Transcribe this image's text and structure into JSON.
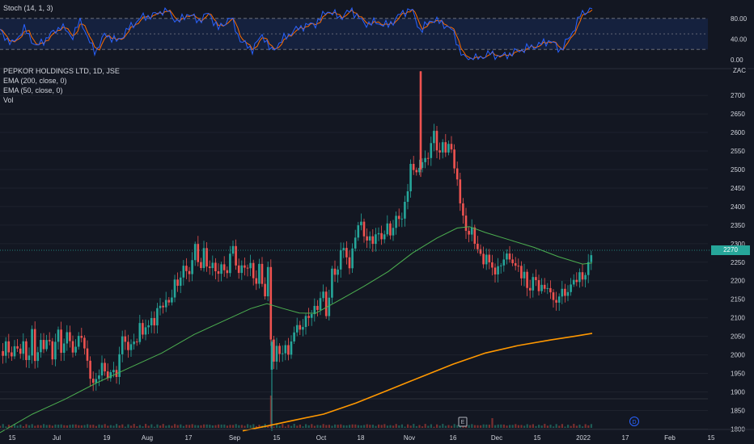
{
  "chart_data": {
    "type": "candlestick",
    "symbol_title": "PEPKOR HOLDINGS LTD, 1D, JSE",
    "currency": "ZAC",
    "last_price_label": "2270",
    "indicators": {
      "ema200_label": "EMA (200, close, 0)",
      "ema50_label": "EMA (50, close, 0)",
      "volume_label": "Vol",
      "stoch_label": "Stoch (14, 1, 3)"
    },
    "colors": {
      "background": "#131722",
      "up": "#26a69a",
      "down": "#ef5350",
      "ema200": "#ff9800",
      "ema50": "#4caf50",
      "stoch_k": "#2962ff",
      "stoch_d": "#ff6d00"
    },
    "price_axis": {
      "ylim": [
        1790,
        2770
      ],
      "ticks": [
        1800,
        1850,
        1900,
        1950,
        2000,
        2050,
        2100,
        2150,
        2200,
        2250,
        2300,
        2350,
        2400,
        2450,
        2500,
        2550,
        2600,
        2650,
        2700
      ]
    },
    "stoch_axis": {
      "ylim": [
        0,
        100
      ],
      "ticks": [
        "0.00",
        "40.00",
        "80.00"
      ],
      "bands": [
        20,
        80
      ]
    },
    "x_axis": {
      "ticks": [
        {
          "label": "15",
          "x": 15
        },
        {
          "label": "Jul",
          "x": 70
        },
        {
          "label": "19",
          "x": 132
        },
        {
          "label": "Aug",
          "x": 182
        },
        {
          "label": "17",
          "x": 233
        },
        {
          "label": "Sep",
          "x": 290
        },
        {
          "label": "15",
          "x": 342
        },
        {
          "label": "Oct",
          "x": 397
        },
        {
          "label": "18",
          "x": 446
        },
        {
          "label": "Nov",
          "x": 506
        },
        {
          "label": "16",
          "x": 560
        },
        {
          "label": "Dec",
          "x": 614
        },
        {
          "label": "15",
          "x": 664
        },
        {
          "label": "2022",
          "x": 721
        },
        {
          "label": "17",
          "x": 773
        },
        {
          "label": "Feb",
          "x": 828
        },
        {
          "label": "15",
          "x": 879
        }
      ]
    },
    "events": [
      {
        "label": "E",
        "x": 572
      },
      {
        "label": "D",
        "x": 784
      }
    ],
    "close_keypoints": [
      [
        0,
        2010
      ],
      [
        4,
        1990
      ],
      [
        8,
        2060
      ],
      [
        12,
        1980
      ],
      [
        16,
        2000
      ],
      [
        20,
        2050
      ],
      [
        24,
        1980
      ],
      [
        28,
        2040
      ],
      [
        32,
        2000
      ],
      [
        36,
        1990
      ],
      [
        40,
        2070
      ],
      [
        44,
        1985
      ],
      [
        48,
        2000
      ],
      [
        52,
        2055
      ],
      [
        56,
        2015
      ],
      [
        60,
        2045
      ],
      [
        64,
        2000
      ],
      [
        68,
        2020
      ],
      [
        72,
        2065
      ],
      [
        76,
        2010
      ],
      [
        80,
        2030
      ],
      [
        84,
        2070
      ],
      [
        88,
        2020
      ],
      [
        92,
        2000
      ],
      [
        96,
        2040
      ],
      [
        100,
        2070
      ],
      [
        104,
        2010
      ],
      [
        108,
        1980
      ],
      [
        112,
        1950
      ],
      [
        116,
        1900
      ],
      [
        120,
        1945
      ],
      [
        124,
        1975
      ],
      [
        128,
        1950
      ],
      [
        132,
        1960
      ],
      [
        136,
        1935
      ],
      [
        140,
        1960
      ],
      [
        144,
        1950
      ],
      [
        148,
        2000
      ],
      [
        152,
        2060
      ],
      [
        156,
        2030
      ],
      [
        160,
        2005
      ],
      [
        164,
        2040
      ],
      [
        168,
        2030
      ],
      [
        172,
        2080
      ],
      [
        176,
        2050
      ],
      [
        180,
        2090
      ],
      [
        184,
        2060
      ],
      [
        188,
        2110
      ],
      [
        192,
        2090
      ],
      [
        196,
        2120
      ],
      [
        200,
        2150
      ],
      [
        204,
        2130
      ],
      [
        208,
        2140
      ],
      [
        212,
        2160
      ],
      [
        216,
        2195
      ],
      [
        220,
        2185
      ],
      [
        224,
        2220
      ],
      [
        228,
        2250
      ],
      [
        232,
        2200
      ],
      [
        236,
        2240
      ],
      [
        240,
        2300
      ],
      [
        244,
        2255
      ],
      [
        248,
        2245
      ],
      [
        252,
        2270
      ],
      [
        256,
        2240
      ],
      [
        260,
        2250
      ],
      [
        264,
        2220
      ],
      [
        268,
        2240
      ],
      [
        272,
        2220
      ],
      [
        276,
        2240
      ],
      [
        280,
        2220
      ],
      [
        284,
        2260
      ],
      [
        288,
        2295
      ],
      [
        292,
        2240
      ],
      [
        296,
        2215
      ],
      [
        300,
        2245
      ],
      [
        304,
        2235
      ],
      [
        308,
        2245
      ],
      [
        312,
        2220
      ],
      [
        316,
        2195
      ],
      [
        320,
        2230
      ],
      [
        324,
        2200
      ],
      [
        328,
        2165
      ],
      [
        332,
        2230
      ],
      [
        336,
        1975
      ],
      [
        340,
        2000
      ],
      [
        344,
        2015
      ],
      [
        348,
        2005
      ],
      [
        352,
        2020
      ],
      [
        356,
        2000
      ],
      [
        360,
        2040
      ],
      [
        364,
        2060
      ],
      [
        368,
        2080
      ],
      [
        372,
        2070
      ],
      [
        376,
        2085
      ],
      [
        380,
        2100
      ],
      [
        384,
        2120
      ],
      [
        388,
        2110
      ],
      [
        392,
        2130
      ],
      [
        396,
        2160
      ],
      [
        400,
        2150
      ],
      [
        404,
        2110
      ],
      [
        408,
        2180
      ],
      [
        412,
        2240
      ],
      [
        416,
        2215
      ],
      [
        420,
        2260
      ],
      [
        424,
        2300
      ],
      [
        428,
        2270
      ],
      [
        432,
        2230
      ],
      [
        436,
        2290
      ],
      [
        440,
        2330
      ],
      [
        444,
        2360
      ],
      [
        448,
        2340
      ],
      [
        452,
        2320
      ],
      [
        456,
        2300
      ],
      [
        460,
        2310
      ],
      [
        464,
        2330
      ],
      [
        468,
        2310
      ],
      [
        472,
        2330
      ],
      [
        476,
        2325
      ],
      [
        480,
        2345
      ],
      [
        484,
        2330
      ],
      [
        488,
        2355
      ],
      [
        492,
        2380
      ],
      [
        496,
        2360
      ],
      [
        500,
        2405
      ],
      [
        504,
        2440
      ],
      [
        508,
        2530
      ],
      [
        512,
        2490
      ],
      [
        516,
        2480
      ],
      [
        520,
        2540
      ],
      [
        524,
        2500
      ],
      [
        528,
        2540
      ],
      [
        532,
        2565
      ],
      [
        536,
        2590
      ],
      [
        540,
        2570
      ],
      [
        544,
        2540
      ],
      [
        548,
        2565
      ],
      [
        552,
        2560
      ],
      [
        556,
        2570
      ],
      [
        560,
        2520
      ],
      [
        564,
        2500
      ],
      [
        568,
        2410
      ],
      [
        572,
        2380
      ],
      [
        576,
        2340
      ],
      [
        580,
        2320
      ],
      [
        584,
        2340
      ],
      [
        588,
        2300
      ],
      [
        592,
        2270
      ],
      [
        596,
        2250
      ],
      [
        600,
        2280
      ],
      [
        604,
        2230
      ],
      [
        608,
        2260
      ],
      [
        612,
        2210
      ],
      [
        616,
        2230
      ],
      [
        620,
        2265
      ],
      [
        624,
        2245
      ],
      [
        628,
        2280
      ],
      [
        632,
        2255
      ],
      [
        636,
        2230
      ],
      [
        640,
        2250
      ],
      [
        644,
        2210
      ],
      [
        648,
        2220
      ],
      [
        652,
        2170
      ],
      [
        656,
        2190
      ],
      [
        660,
        2210
      ],
      [
        664,
        2180
      ],
      [
        668,
        2200
      ],
      [
        672,
        2150
      ],
      [
        676,
        2210
      ],
      [
        680,
        2160
      ],
      [
        684,
        2140
      ],
      [
        688,
        2160
      ],
      [
        692,
        2145
      ],
      [
        696,
        2185
      ],
      [
        700,
        2160
      ],
      [
        704,
        2170
      ],
      [
        708,
        2210
      ],
      [
        712,
        2195
      ],
      [
        716,
        2220
      ],
      [
        720,
        2200
      ],
      [
        724,
        2230
      ],
      [
        728,
        2245
      ],
      [
        732,
        2270
      ]
    ],
    "ema50_keypoints": [
      [
        0,
        1790
      ],
      [
        40,
        1840
      ],
      [
        80,
        1880
      ],
      [
        120,
        1925
      ],
      [
        160,
        1965
      ],
      [
        200,
        2005
      ],
      [
        240,
        2055
      ],
      [
        280,
        2095
      ],
      [
        310,
        2125
      ],
      [
        330,
        2138
      ],
      [
        350,
        2125
      ],
      [
        370,
        2113
      ],
      [
        390,
        2112
      ],
      [
        420,
        2148
      ],
      [
        450,
        2185
      ],
      [
        480,
        2225
      ],
      [
        510,
        2275
      ],
      [
        540,
        2315
      ],
      [
        565,
        2342
      ],
      [
        580,
        2346
      ],
      [
        600,
        2330
      ],
      [
        630,
        2310
      ],
      [
        660,
        2290
      ],
      [
        690,
        2265
      ],
      [
        720,
        2245
      ],
      [
        732,
        2248
      ]
    ],
    "ema200_keypoints": [
      [
        300,
        1795
      ],
      [
        330,
        1808
      ],
      [
        360,
        1822
      ],
      [
        400,
        1840
      ],
      [
        440,
        1870
      ],
      [
        480,
        1905
      ],
      [
        520,
        1940
      ],
      [
        560,
        1975
      ],
      [
        600,
        2005
      ],
      [
        640,
        2025
      ],
      [
        680,
        2040
      ],
      [
        710,
        2050
      ],
      [
        732,
        2058
      ]
    ],
    "stoch_keypoints": [
      [
        0,
        55
      ],
      [
        15,
        30
      ],
      [
        30,
        60
      ],
      [
        45,
        25
      ],
      [
        60,
        45
      ],
      [
        75,
        65
      ],
      [
        90,
        45
      ],
      [
        100,
        78
      ],
      [
        110,
        35
      ],
      [
        118,
        15
      ],
      [
        130,
        50
      ],
      [
        145,
        35
      ],
      [
        160,
        62
      ],
      [
        175,
        82
      ],
      [
        190,
        86
      ],
      [
        205,
        98
      ],
      [
        220,
        72
      ],
      [
        232,
        90
      ],
      [
        245,
        75
      ],
      [
        258,
        90
      ],
      [
        270,
        60
      ],
      [
        285,
        82
      ],
      [
        298,
        35
      ],
      [
        312,
        20
      ],
      [
        325,
        50
      ],
      [
        335,
        15
      ],
      [
        350,
        40
      ],
      [
        362,
        55
      ],
      [
        375,
        65
      ],
      [
        390,
        70
      ],
      [
        405,
        95
      ],
      [
        420,
        82
      ],
      [
        435,
        96
      ],
      [
        450,
        70
      ],
      [
        465,
        72
      ],
      [
        480,
        66
      ],
      [
        495,
        88
      ],
      [
        508,
        99
      ],
      [
        520,
        55
      ],
      [
        533,
        78
      ],
      [
        548,
        70
      ],
      [
        560,
        55
      ],
      [
        572,
        4
      ],
      [
        590,
        2
      ],
      [
        605,
        12
      ],
      [
        620,
        6
      ],
      [
        635,
        14
      ],
      [
        650,
        22
      ],
      [
        665,
        28
      ],
      [
        680,
        38
      ],
      [
        692,
        18
      ],
      [
        705,
        45
      ],
      [
        718,
        88
      ],
      [
        732,
        100
      ]
    ],
    "volume_spikes": [
      {
        "x": 336,
        "value": 40
      },
      {
        "x": 607,
        "value": 12
      }
    ]
  }
}
